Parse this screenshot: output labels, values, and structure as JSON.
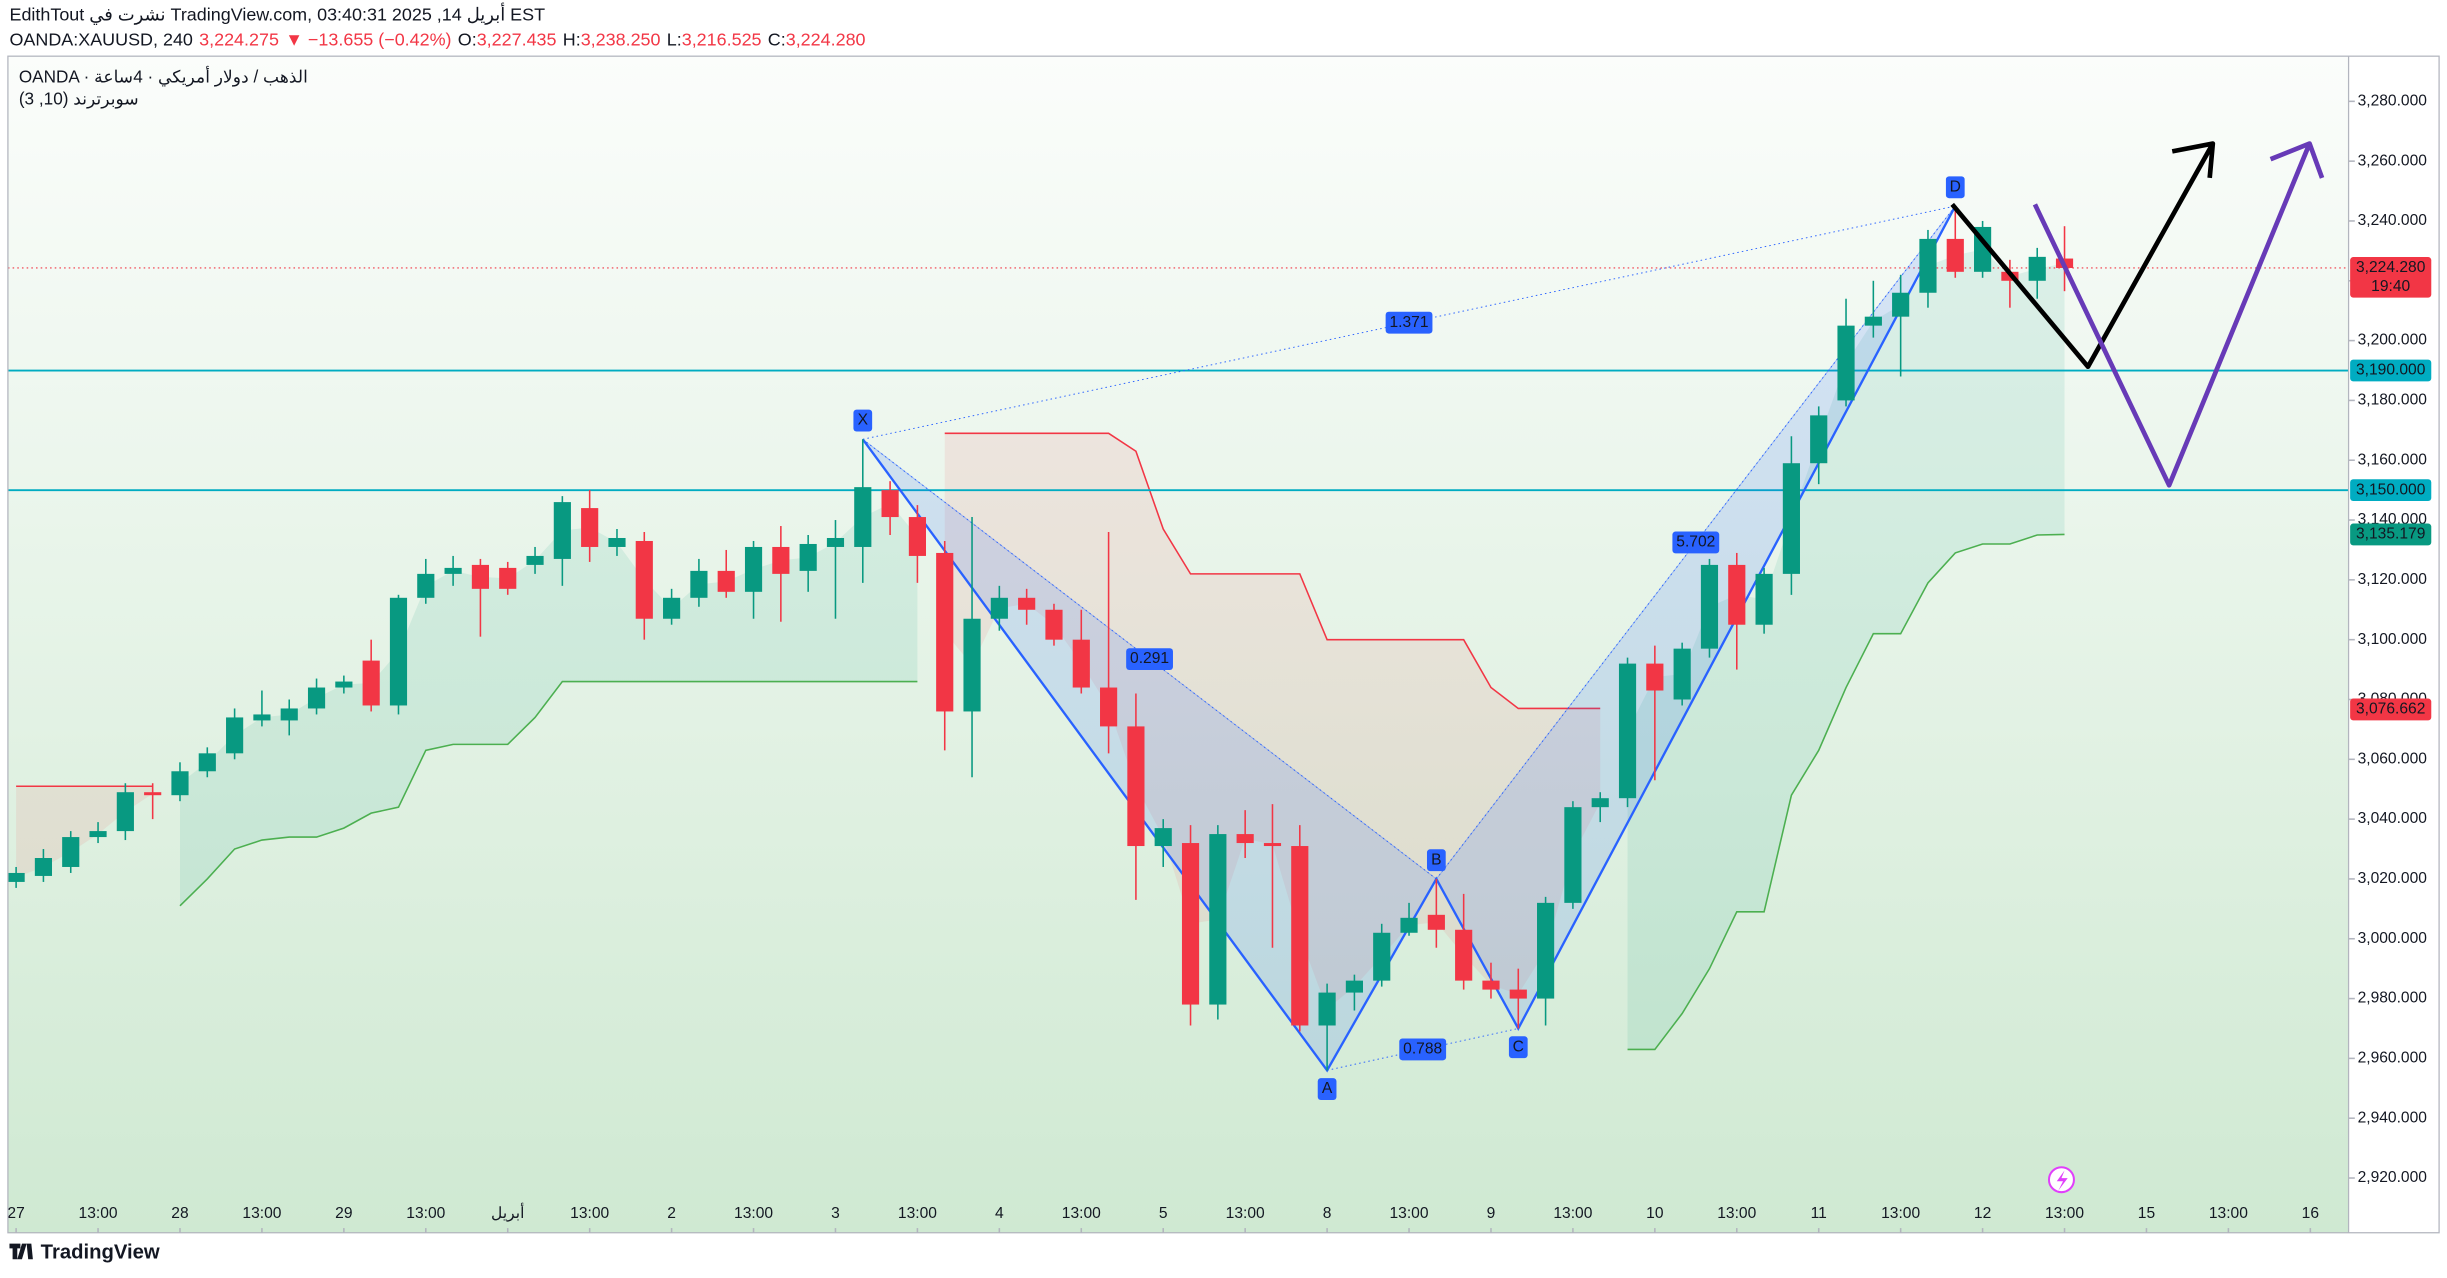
{
  "header": {
    "line1": "EdithTout نشرت في TradingView.com, أبريل 14, 2025 03:40:31 EST",
    "symbol": "OANDA:XAUUSD, 240",
    "last": "3,224.275",
    "change": "▼ −13.655 (−0.42%)",
    "ohlc": [
      {
        "label": "O:",
        "value": "3,227.435"
      },
      {
        "label": "H:",
        "value": "3,238.250"
      },
      {
        "label": "L:",
        "value": "3,216.525"
      },
      {
        "label": "C:",
        "value": "3,224.280"
      }
    ]
  },
  "legend": {
    "symbol": "OANDA · الذهب / دولار أمريكي · 4ساعة",
    "indicator": "سوبرترند (10, 3)"
  },
  "footer": {
    "brand": "TradingView"
  },
  "chart_data": {
    "type": "candlestick",
    "up_color": "#089981",
    "down_color": "#f23645",
    "x": [
      0,
      1,
      2,
      3,
      4,
      5,
      6,
      7,
      8,
      9,
      10,
      11,
      12,
      13,
      14,
      15,
      16,
      17,
      18,
      19,
      20,
      21,
      22,
      23,
      24,
      25,
      26,
      27,
      28,
      29,
      30,
      31,
      32,
      33,
      34,
      35,
      36,
      37,
      38,
      39,
      40,
      41,
      42,
      43,
      44,
      45,
      46,
      47,
      48,
      49,
      50,
      51,
      52,
      53,
      54,
      55,
      56,
      57,
      58,
      59,
      60,
      61,
      62,
      63,
      64,
      65,
      66,
      67,
      68,
      69,
      70,
      71,
      72,
      73,
      74,
      75
    ],
    "open": [
      3019,
      3021,
      3024,
      3034,
      3036,
      3049,
      3048,
      3056,
      3062,
      3073,
      3073,
      3077,
      3084,
      3093,
      3078,
      3114,
      3122,
      3125,
      3124,
      3125,
      3127,
      3144,
      3131,
      3133,
      3107,
      3114,
      3123,
      3116,
      3131,
      3123,
      3131,
      3131,
      3150,
      3141,
      3129,
      3076,
      3107,
      3114,
      3110,
      3100,
      3084,
      3071,
      3031,
      3032,
      2978,
      3035,
      3032,
      3031,
      2971,
      2982,
      2986,
      3002,
      3008,
      3003,
      2986,
      2983,
      2980,
      3012,
      3044,
      3047,
      3092,
      3080,
      3097,
      3125,
      3105,
      3122,
      3159,
      3180,
      3205,
      3208,
      3216,
      3234,
      3223,
      3223,
      3220,
      3227.435
    ],
    "high": [
      3024,
      3030,
      3036,
      3039,
      3052,
      3052,
      3059,
      3064,
      3077,
      3083,
      3080,
      3087,
      3088,
      3100,
      3115,
      3127,
      3128,
      3127,
      3126,
      3131,
      3148,
      3150,
      3137,
      3136,
      3117,
      3127,
      3130,
      3133,
      3138,
      3135,
      3140,
      3167,
      3153,
      3145,
      3133,
      3141,
      3118,
      3117,
      3112,
      3110,
      3136,
      3082,
      3040,
      3038,
      3038,
      3043,
      3045,
      3038,
      2985,
      2988,
      3005,
      3012,
      3020,
      3015,
      2992,
      2990,
      3014,
      3046,
      3049,
      3094,
      3098,
      3099,
      3127,
      3129,
      3124,
      3168,
      3178,
      3214,
      3220,
      3222,
      3237,
      3245,
      3240,
      3227,
      3231,
      3238.25
    ],
    "low": [
      3017,
      3019,
      3022,
      3032,
      3033,
      3040,
      3046,
      3054,
      3060,
      3071,
      3068,
      3075,
      3082,
      3076,
      3075,
      3112,
      3118,
      3101,
      3115,
      3122,
      3118,
      3126,
      3128,
      3100,
      3105,
      3111,
      3114,
      3107,
      3106,
      3116,
      3107,
      3119,
      3135,
      3119,
      3063,
      3054,
      3103,
      3105,
      3098,
      3082,
      3062,
      3013,
      3024,
      2971,
      2973,
      3027,
      2997,
      2969,
      2956,
      2976,
      2984,
      3001,
      2997,
      2983,
      2980,
      2970,
      2971,
      3010,
      3039,
      3044,
      3053,
      3078,
      3094,
      3090,
      3102,
      3115,
      3152,
      3178,
      3201,
      3188,
      3211,
      3221,
      3221,
      3211,
      3214,
      3216.525
    ],
    "close": [
      3022,
      3027,
      3034,
      3036,
      3049,
      3048,
      3056,
      3062,
      3074,
      3075,
      3077,
      3084,
      3086,
      3078,
      3114,
      3122,
      3124,
      3117,
      3117,
      3128,
      3146,
      3131,
      3134,
      3107,
      3114,
      3123,
      3116,
      3131,
      3122,
      3132,
      3134,
      3151,
      3141,
      3128,
      3076,
      3107,
      3114,
      3110,
      3100,
      3084,
      3071,
      3031,
      3037,
      2978,
      3035,
      3032,
      3031,
      2971,
      2982,
      2986,
      3002,
      3007,
      3003,
      2986,
      2983,
      2980,
      3012,
      3044,
      3047,
      3092,
      3083,
      3097,
      3125,
      3105,
      3122,
      3159,
      3175,
      3205,
      3208,
      3216,
      3234,
      3223,
      3238,
      3220,
      3228,
      3224.28
    ],
    "supertrend": {
      "up_color": "#4caf50",
      "down_color": "#f23645",
      "up": [
        null,
        null,
        null,
        null,
        null,
        null,
        3011,
        3020,
        3030,
        3033,
        3034,
        3034,
        3037,
        3042,
        3044,
        3063,
        3065,
        3065,
        3065,
        3074,
        3086,
        3086,
        3086,
        3086,
        3086,
        3086,
        3086,
        3086,
        3086,
        3086,
        3086,
        3086,
        3086,
        3086,
        null,
        null,
        null,
        null,
        null,
        null,
        null,
        null,
        null,
        null,
        null,
        null,
        null,
        null,
        null,
        null,
        null,
        null,
        null,
        null,
        null,
        null,
        null,
        null,
        null,
        2963,
        2963,
        2975,
        2990,
        3009,
        3009,
        3048,
        3063,
        3084,
        3102,
        3102,
        3119,
        3129,
        3132,
        3132,
        3135,
        3135.179
      ],
      "down": [
        3051,
        3051,
        3051,
        3051,
        3051,
        3051,
        null,
        null,
        null,
        null,
        null,
        null,
        null,
        null,
        null,
        null,
        null,
        null,
        null,
        null,
        null,
        null,
        null,
        null,
        null,
        null,
        null,
        null,
        null,
        null,
        null,
        null,
        null,
        null,
        3169,
        3169,
        3169,
        3169,
        3169,
        3169,
        3169,
        3163,
        3137,
        3122,
        3122,
        3122,
        3122,
        3122,
        3100,
        3100,
        3100,
        3100,
        3100,
        3100,
        3084,
        3077,
        3077,
        3077,
        3077,
        null,
        null,
        null,
        null,
        null,
        null,
        null,
        null,
        null,
        null,
        null,
        null,
        null,
        null,
        null,
        null,
        null
      ]
    },
    "harmonic": {
      "color": "#2962ff",
      "points": [
        {
          "label": "X",
          "x": 31,
          "y": 3167
        },
        {
          "label": "A",
          "x": 48,
          "y": 2956
        },
        {
          "label": "B",
          "x": 52,
          "y": 3020
        },
        {
          "label": "C",
          "x": 55,
          "y": 2970
        },
        {
          "label": "D",
          "x": 71,
          "y": 3245
        }
      ],
      "ratios": [
        {
          "from": 0,
          "to": 2,
          "value": 0.291
        },
        {
          "from": 1,
          "to": 3,
          "value": 0.788
        },
        {
          "from": 2,
          "to": 4,
          "value": 5.702
        },
        {
          "from": 0,
          "to": 4,
          "value": 1.371
        }
      ]
    },
    "hlines": [
      {
        "value": 3190,
        "label": "3,190.000",
        "color": "#00acc1"
      },
      {
        "value": 3150,
        "label": "3,150.000",
        "color": "#00acc1"
      }
    ],
    "price_labels": [
      {
        "value": 3135.179,
        "label": "3,135.179",
        "color": "#089981"
      },
      {
        "value": 3076.662,
        "label": "3,076.662",
        "color": "#f23645"
      }
    ],
    "last_price": {
      "value": 3224.28,
      "label": "3,224.280",
      "countdown": "19:40",
      "color": "#f23645"
    },
    "xlim": [
      -0.3,
      85.4
    ],
    "ylim": [
      2901.7,
      3295.1
    ],
    "xticks": [
      {
        "value": 0,
        "label": "27"
      },
      {
        "value": 3,
        "label": "13:00"
      },
      {
        "value": 6,
        "label": "28"
      },
      {
        "value": 9,
        "label": "13:00"
      },
      {
        "value": 12,
        "label": "29"
      },
      {
        "value": 15,
        "label": "13:00"
      },
      {
        "value": 18,
        "label": "أبريل"
      },
      {
        "value": 21,
        "label": "13:00"
      },
      {
        "value": 24,
        "label": "2"
      },
      {
        "value": 27,
        "label": "13:00"
      },
      {
        "value": 30,
        "label": "3"
      },
      {
        "value": 33,
        "label": "13:00"
      },
      {
        "value": 36,
        "label": "4"
      },
      {
        "value": 39,
        "label": "13:00"
      },
      {
        "value": 42,
        "label": "5"
      },
      {
        "value": 45,
        "label": "13:00"
      },
      {
        "value": 48,
        "label": "8"
      },
      {
        "value": 51,
        "label": "13:00"
      },
      {
        "value": 54,
        "label": "9"
      },
      {
        "value": 57,
        "label": "13:00"
      },
      {
        "value": 60,
        "label": "10"
      },
      {
        "value": 63,
        "label": "13:00"
      },
      {
        "value": 66,
        "label": "11"
      },
      {
        "value": 69,
        "label": "13:00"
      },
      {
        "value": 72,
        "label": "12"
      },
      {
        "value": 75,
        "label": "13:00"
      },
      {
        "value": 78,
        "label": "15"
      },
      {
        "value": 81,
        "label": "13:00"
      },
      {
        "value": 84,
        "label": "16"
      }
    ],
    "yticks": [
      {
        "value": 2920,
        "label": "2,920.000"
      },
      {
        "value": 2940,
        "label": "2,940.000"
      },
      {
        "value": 2960,
        "label": "2,960.000"
      },
      {
        "value": 2980,
        "label": "2,980.000"
      },
      {
        "value": 3000,
        "label": "3,000.000"
      },
      {
        "value": 3020,
        "label": "3,020.000"
      },
      {
        "value": 3040,
        "label": "3,040.000"
      },
      {
        "value": 3060,
        "label": "3,060.000"
      },
      {
        "value": 3080,
        "label": "3,080.000"
      },
      {
        "value": 3100,
        "label": "3,100.000"
      },
      {
        "value": 3120,
        "label": "3,120.000"
      },
      {
        "value": 3140,
        "label": "3,140.000"
      },
      {
        "value": 3160,
        "label": "3,160.000"
      },
      {
        "value": 3180,
        "label": "3,180.000"
      },
      {
        "value": 3200,
        "label": "3,200.000"
      },
      {
        "value": 3220,
        "label": "3,220.000"
      },
      {
        "value": 3240,
        "label": "3,240.000"
      },
      {
        "value": 3260,
        "label": "3,260.000"
      },
      {
        "value": 3280,
        "label": "3,280.000"
      }
    ]
  }
}
